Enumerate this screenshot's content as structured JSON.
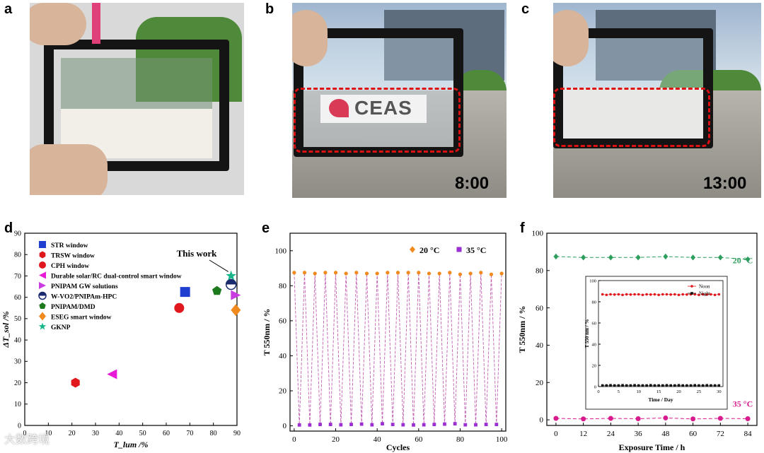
{
  "panel_labels": {
    "a": "a",
    "b": "b",
    "c": "c",
    "d": "d",
    "e": "e",
    "f": "f"
  },
  "photos": {
    "b_time": "8:00",
    "c_time": "13:00",
    "b_sign": "CEAS"
  },
  "watermark": "大数跨境",
  "chart_data": [
    {
      "id": "d",
      "type": "scatter",
      "xlabel": "T_lum /%",
      "ylabel": "ΔT_sol /%",
      "xlim": [
        0,
        90
      ],
      "ylim": [
        0,
        90
      ],
      "xticks": [
        0,
        10,
        20,
        30,
        40,
        50,
        60,
        70,
        80,
        90
      ],
      "yticks": [
        0,
        10,
        20,
        30,
        40,
        50,
        60,
        70,
        80,
        90
      ],
      "annotation": "This work",
      "series": [
        {
          "name": "STR window",
          "marker": "square",
          "color": "#1f3fd1",
          "x": 68,
          "y": 62.5
        },
        {
          "name": "TRSW window",
          "marker": "hexagon",
          "color": "#e0171c",
          "x": 21.5,
          "y": 20
        },
        {
          "name": "CPH window",
          "marker": "circle",
          "color": "#e0171c",
          "x": 65.5,
          "y": 55
        },
        {
          "name": "Durable solar/RC dual-control smart window",
          "marker": "triangle-left",
          "color": "#e81ad8",
          "x": 37,
          "y": 24
        },
        {
          "name": "PNIPAM GW solutions",
          "marker": "triangle-right",
          "color": "#c93be0",
          "x": 89.5,
          "y": 61
        },
        {
          "name": "W-VO2/PNIPAm-HPC",
          "marker": "halfcircle",
          "color": "#1a2a6e",
          "x": 87.5,
          "y": 66
        },
        {
          "name": "PNIPAM/DMD",
          "marker": "pentagon",
          "color": "#1c7a1c",
          "x": 81.5,
          "y": 63
        },
        {
          "name": "ESEG smart window",
          "marker": "diamond",
          "color": "#f08a1e",
          "x": 89.5,
          "y": 54
        },
        {
          "name": "GKNP",
          "marker": "star",
          "color": "#19b58a",
          "x": 87.5,
          "y": 70
        }
      ],
      "legend": [
        "STR window",
        "TRSW window",
        "CPH window",
        "Durable solar/RC dual-control smart window",
        "PNIPAM GW solutions",
        "W-VO2/PNIPAm-HPC",
        "PNIPAM/DMD",
        "ESEG smart window",
        "GKNP"
      ],
      "legend_placement": "top-left"
    },
    {
      "id": "e",
      "type": "line",
      "xlabel": "Cycles",
      "ylabel": "T 550nm / %",
      "xlim": [
        0,
        100
      ],
      "ylim": [
        0,
        100
      ],
      "xticks": [
        0,
        20,
        40,
        60,
        80,
        100
      ],
      "yticks": [
        0,
        20,
        40,
        60,
        80,
        100
      ],
      "legend_placement": "top-right",
      "series": [
        {
          "name": "20 °C",
          "color": "#f08a1e",
          "marker": "circle",
          "x": [
            0,
            5,
            10,
            15,
            20,
            25,
            30,
            35,
            40,
            45,
            50,
            55,
            60,
            65,
            70,
            75,
            80,
            85,
            90,
            95,
            100
          ],
          "values": [
            87.5,
            87.5,
            87,
            87.5,
            87.5,
            87,
            87.5,
            87,
            87,
            87.5,
            87.5,
            87.5,
            87.5,
            87,
            87,
            87.5,
            86.5,
            87,
            87.5,
            86.5,
            87
          ]
        },
        {
          "name": "35 °C",
          "color": "#9b2fd1",
          "marker": "square",
          "x": [
            2.5,
            7.5,
            12.5,
            17.5,
            22.5,
            27.5,
            32.5,
            37.5,
            42.5,
            47.5,
            52.5,
            57.5,
            62.5,
            67.5,
            72.5,
            77.5,
            82.5,
            87.5,
            92.5,
            97.5
          ],
          "values": [
            0.5,
            0.5,
            0.8,
            0.8,
            0.6,
            0.8,
            1,
            0.6,
            1.2,
            0.8,
            0.6,
            0.5,
            0.6,
            0.8,
            1,
            1.2,
            0.6,
            0.6,
            0.8,
            0.8
          ]
        }
      ]
    },
    {
      "id": "f",
      "type": "line",
      "xlabel": "Exposure Time / h",
      "ylabel": "T 550nm / %",
      "xlim": [
        -4,
        88
      ],
      "ylim": [
        -3,
        100
      ],
      "xticks": [
        0,
        12,
        24,
        36,
        48,
        60,
        72,
        84
      ],
      "yticks": [
        0,
        20,
        40,
        60,
        80,
        100
      ],
      "annotations": [
        "20 °C",
        "35 °C"
      ],
      "series": [
        {
          "name": "20 °C",
          "color": "#2e9e5e",
          "marker": "diamond",
          "x": [
            0,
            12,
            24,
            36,
            48,
            60,
            72,
            84
          ],
          "values": [
            87.5,
            87,
            87,
            87,
            87.5,
            87,
            87,
            86
          ]
        },
        {
          "name": "35 °C",
          "color": "#d81b8c",
          "marker": "circle",
          "x": [
            0,
            12,
            24,
            36,
            48,
            60,
            72,
            84
          ],
          "values": [
            0.8,
            0.5,
            0.8,
            0.6,
            1,
            0.5,
            0.8,
            0.6
          ]
        }
      ],
      "inset": {
        "xlabel": "Time / Day",
        "ylabel": "T 550 nm / %",
        "xlim": [
          0,
          31
        ],
        "ylim": [
          0,
          100
        ],
        "xticks": [
          0,
          5,
          10,
          15,
          20,
          25,
          30
        ],
        "yticks": [
          0,
          20,
          40,
          60,
          80,
          100
        ],
        "series": [
          {
            "name": "Noon",
            "color": "#e0171c",
            "marker": "circle",
            "x": [
              1,
              2,
              3,
              4,
              5,
              6,
              7,
              8,
              9,
              10,
              11,
              12,
              13,
              14,
              15,
              16,
              17,
              18,
              19,
              20,
              21,
              22,
              23,
              24,
              25,
              26,
              27,
              28,
              29,
              30
            ],
            "values": [
              87,
              86.5,
              87,
              86.8,
              87,
              86.5,
              87,
              86.8,
              87,
              87,
              86.5,
              87,
              86.8,
              87,
              86.5,
              87,
              87,
              86.8,
              87,
              86.5,
              87,
              86.8,
              87,
              87,
              86.5,
              87,
              86.8,
              87,
              86.5,
              87
            ]
          },
          {
            "name": "Night",
            "color": "#111111",
            "marker": "square",
            "x": [
              1,
              2,
              3,
              4,
              5,
              6,
              7,
              8,
              9,
              10,
              11,
              12,
              13,
              14,
              15,
              16,
              17,
              18,
              19,
              20,
              21,
              22,
              23,
              24,
              25,
              26,
              27,
              28,
              29,
              30
            ],
            "values": [
              1,
              1,
              1.2,
              1,
              1,
              1.2,
              1,
              1,
              1.2,
              1,
              1,
              1,
              1.2,
              1,
              1,
              1,
              1.2,
              1,
              1,
              1.2,
              1,
              1,
              1,
              1.2,
              1,
              1,
              1.2,
              1,
              1,
              1
            ]
          }
        ],
        "legend_placement": "top-right"
      }
    }
  ]
}
